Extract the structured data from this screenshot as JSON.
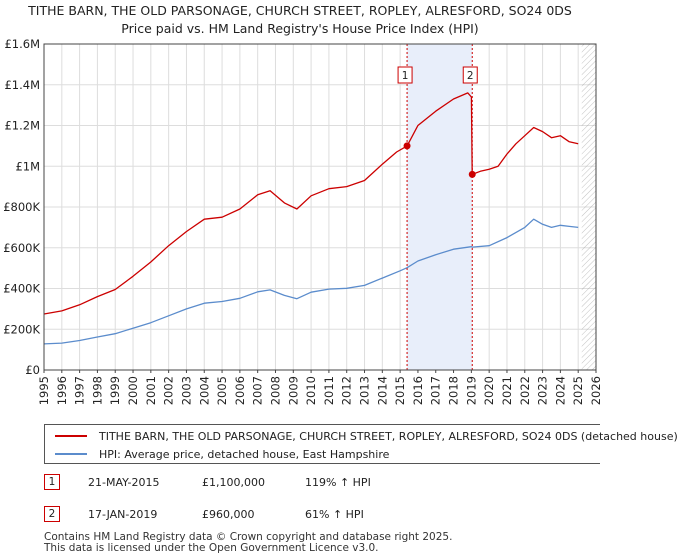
{
  "chart_data": {
    "type": "line",
    "title": "TITHE BARN, THE OLD PARSONAGE, CHURCH STREET, ROPLEY, ALRESFORD, SO24 0DS",
    "subtitle": "Price paid vs. HM Land Registry's House Price Index (HPI)",
    "xlim": [
      1995,
      2026
    ],
    "ylim": [
      0,
      1600000
    ],
    "x_ticks": [
      "1995",
      "1996",
      "1997",
      "1998",
      "1999",
      "2000",
      "2001",
      "2002",
      "2003",
      "2004",
      "2005",
      "2006",
      "2007",
      "2008",
      "2009",
      "2010",
      "2011",
      "2012",
      "2013",
      "2014",
      "2015",
      "2016",
      "2017",
      "2018",
      "2019",
      "2020",
      "2021",
      "2022",
      "2023",
      "2024",
      "2025",
      "2026"
    ],
    "y_ticks": [
      {
        "value": 0,
        "label": "£0"
      },
      {
        "value": 200000,
        "label": "£200K"
      },
      {
        "value": 400000,
        "label": "£400K"
      },
      {
        "value": 600000,
        "label": "£600K"
      },
      {
        "value": 800000,
        "label": "£800K"
      },
      {
        "value": 1000000,
        "label": "£1M"
      },
      {
        "value": 1200000,
        "label": "£1.2M"
      },
      {
        "value": 1400000,
        "label": "£1.4M"
      },
      {
        "value": 1600000,
        "label": "£1.6M"
      }
    ],
    "grid": true,
    "shaded_period": [
      2015.39,
      2019.05
    ],
    "future_hatch_from": 2025.2,
    "series": [
      {
        "name": "TITHE BARN, THE OLD PARSONAGE, CHURCH STREET, ROPLEY, ALRESFORD, SO24 0DS (detached house)",
        "color": "#cc0000",
        "points": [
          [
            1995.0,
            275000
          ],
          [
            1996.0,
            290000
          ],
          [
            1997.0,
            320000
          ],
          [
            1998.0,
            360000
          ],
          [
            1999.0,
            395000
          ],
          [
            2000.0,
            460000
          ],
          [
            2001.0,
            530000
          ],
          [
            2002.0,
            610000
          ],
          [
            2003.0,
            680000
          ],
          [
            2004.0,
            740000
          ],
          [
            2005.0,
            750000
          ],
          [
            2006.0,
            790000
          ],
          [
            2007.0,
            860000
          ],
          [
            2007.7,
            880000
          ],
          [
            2008.5,
            820000
          ],
          [
            2009.2,
            790000
          ],
          [
            2010.0,
            855000
          ],
          [
            2011.0,
            890000
          ],
          [
            2012.0,
            900000
          ],
          [
            2013.0,
            930000
          ],
          [
            2014.0,
            1010000
          ],
          [
            2014.8,
            1070000
          ],
          [
            2015.39,
            1100000
          ],
          [
            2016.0,
            1200000
          ],
          [
            2017.0,
            1270000
          ],
          [
            2018.0,
            1330000
          ],
          [
            2018.8,
            1360000
          ],
          [
            2019.0,
            1340000
          ],
          [
            2019.05,
            960000
          ],
          [
            2019.5,
            975000
          ],
          [
            2020.0,
            985000
          ],
          [
            2020.5,
            1000000
          ],
          [
            2021.0,
            1060000
          ],
          [
            2021.5,
            1110000
          ],
          [
            2022.0,
            1150000
          ],
          [
            2022.5,
            1190000
          ],
          [
            2023.0,
            1170000
          ],
          [
            2023.5,
            1140000
          ],
          [
            2024.0,
            1150000
          ],
          [
            2024.5,
            1120000
          ],
          [
            2025.0,
            1110000
          ]
        ]
      },
      {
        "name": "HPI: Average price, detached house, East Hampshire",
        "color": "#5b8ccc",
        "points": [
          [
            1995.0,
            128000
          ],
          [
            1996.0,
            132000
          ],
          [
            1997.0,
            145000
          ],
          [
            1998.0,
            162000
          ],
          [
            1999.0,
            178000
          ],
          [
            2000.0,
            205000
          ],
          [
            2001.0,
            232000
          ],
          [
            2002.0,
            266000
          ],
          [
            2003.0,
            300000
          ],
          [
            2004.0,
            328000
          ],
          [
            2005.0,
            336000
          ],
          [
            2006.0,
            352000
          ],
          [
            2007.0,
            384000
          ],
          [
            2007.7,
            393000
          ],
          [
            2008.5,
            366000
          ],
          [
            2009.2,
            350000
          ],
          [
            2010.0,
            382000
          ],
          [
            2011.0,
            397000
          ],
          [
            2012.0,
            401000
          ],
          [
            2013.0,
            415000
          ],
          [
            2014.0,
            451000
          ],
          [
            2015.0,
            487000
          ],
          [
            2015.39,
            502000
          ],
          [
            2016.0,
            535000
          ],
          [
            2017.0,
            566000
          ],
          [
            2018.0,
            593000
          ],
          [
            2019.0,
            605000
          ],
          [
            2019.05,
            603000
          ],
          [
            2020.0,
            610000
          ],
          [
            2021.0,
            650000
          ],
          [
            2022.0,
            700000
          ],
          [
            2022.5,
            740000
          ],
          [
            2023.0,
            715000
          ],
          [
            2023.5,
            700000
          ],
          [
            2024.0,
            710000
          ],
          [
            2024.5,
            705000
          ],
          [
            2025.0,
            700000
          ]
        ]
      }
    ],
    "annotations": [
      {
        "label": "1",
        "x": 2015.39,
        "y": 1100000
      },
      {
        "label": "2",
        "x": 2019.05,
        "y": 960000
      }
    ]
  },
  "legend": {
    "property_label": "TITHE BARN, THE OLD PARSONAGE, CHURCH STREET, ROPLEY, ALRESFORD, SO24 0DS (detached house)",
    "hpi_label": "HPI: Average price, detached house, East Hampshire"
  },
  "sales": [
    {
      "num": "1",
      "date": "21-MAY-2015",
      "price": "£1,100,000",
      "hpi": "119% ↑ HPI"
    },
    {
      "num": "2",
      "date": "17-JAN-2019",
      "price": "£960,000",
      "hpi": "61% ↑ HPI"
    }
  ],
  "footer": {
    "line1": "Contains HM Land Registry data © Crown copyright and database right 2025.",
    "line2": "This data is licensed under the Open Government Licence v3.0."
  },
  "colors": {
    "property": "#cc0000",
    "hpi": "#5b8ccc",
    "shade": "#e8eefa",
    "grid": "#dddddd"
  }
}
